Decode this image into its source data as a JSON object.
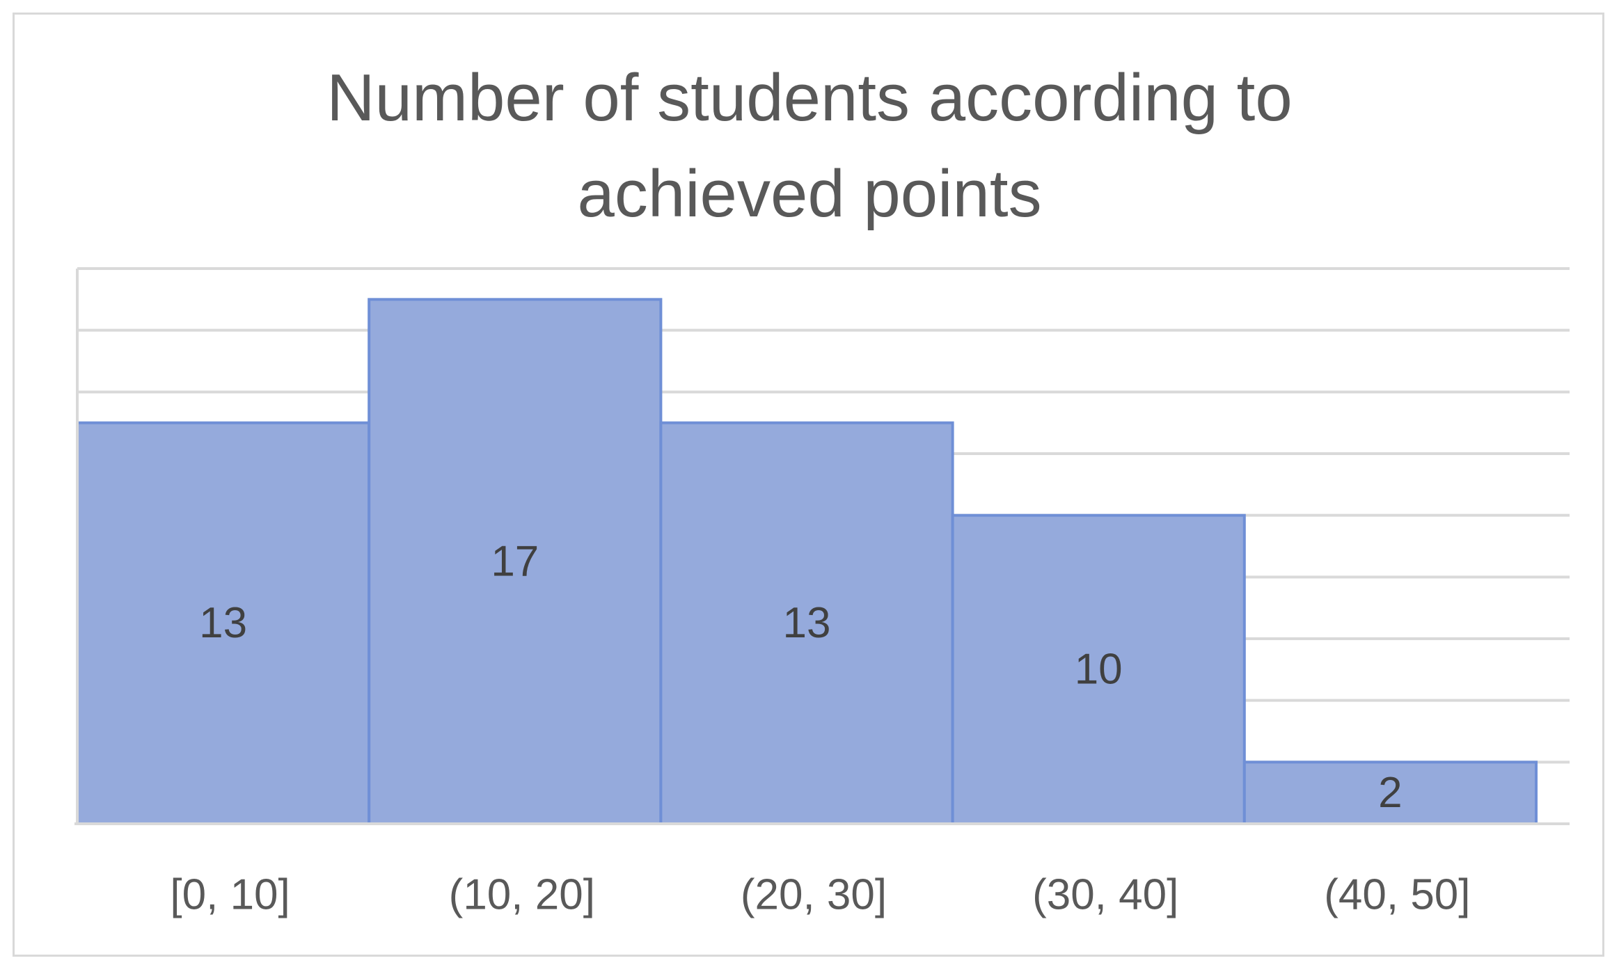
{
  "chart_data": {
    "type": "bar",
    "title": "Number of students according to achieved points",
    "categories": [
      "[0, 10]",
      "(10, 20]",
      "(20, 30]",
      "(30, 40]",
      "(40, 50]"
    ],
    "values": [
      13,
      17,
      13,
      10,
      2
    ],
    "color": "#95aadc",
    "ylim": [
      0,
      18
    ],
    "yticks": [
      0,
      2,
      4,
      6,
      8,
      10,
      12,
      14,
      16,
      18
    ],
    "grid": true
  }
}
